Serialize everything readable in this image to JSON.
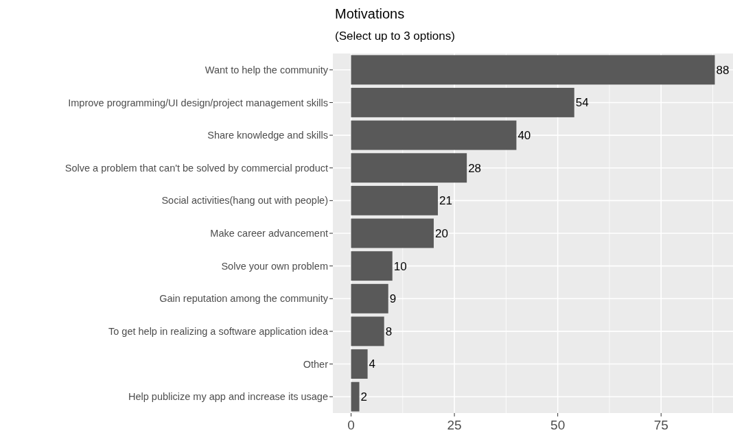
{
  "chart_data": {
    "type": "bar",
    "orientation": "horizontal",
    "title": "Motivations",
    "subtitle": "(Select up to 3 options)",
    "categories": [
      "Want to help the community",
      "Improve programming/UI design/project management skills",
      "Share knowledge and skills",
      "Solve a problem that can't be solved by commercial product",
      "Social activities(hang out with people)",
      "Make career advancement",
      "Solve your own problem",
      "Gain reputation among the community",
      "To get help in realizing a software application idea",
      "Other",
      "Help publicize my app and increase its usage"
    ],
    "values": [
      88,
      54,
      40,
      28,
      21,
      20,
      10,
      9,
      8,
      4,
      2
    ],
    "color": "#595959",
    "xlim": [
      -4.4,
      92.4
    ],
    "xticks": [
      0,
      25,
      50,
      75
    ],
    "grid": true,
    "data_labels": true
  }
}
